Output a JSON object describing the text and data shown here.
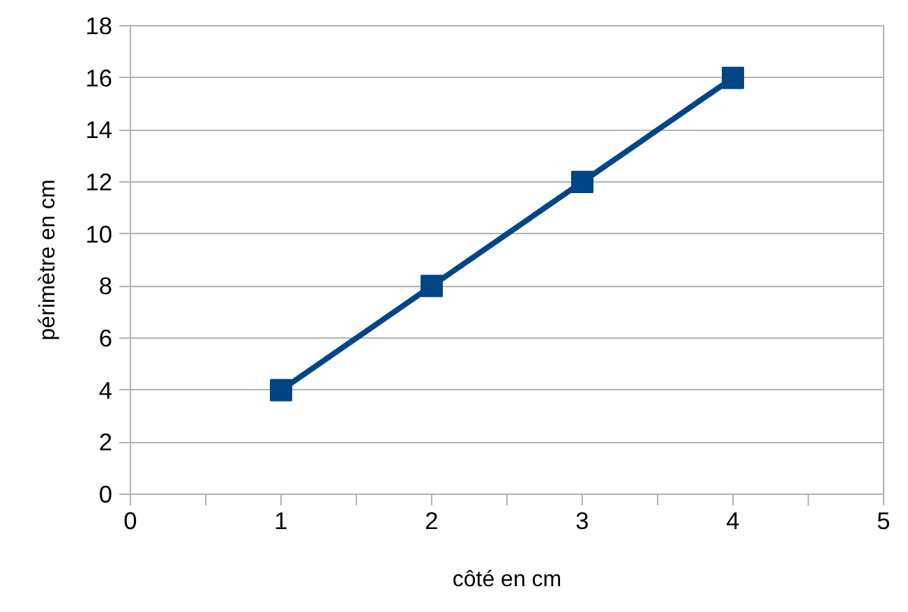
{
  "chart_data": {
    "type": "line",
    "xlabel": "côté en cm",
    "ylabel": "périmètre en cm",
    "x": [
      1,
      2,
      3,
      4
    ],
    "series": [
      {
        "color": "#004586",
        "values": [
          4,
          8,
          12,
          16
        ]
      }
    ],
    "xlim": [
      0,
      5
    ],
    "ylim": [
      0,
      18
    ],
    "xticks": [
      0,
      {
        "value": 0.5,
        "label": null
      },
      1,
      {
        "value": 1.5,
        "label": null
      },
      2,
      {
        "value": 2.5,
        "label": null
      },
      3,
      {
        "value": 3.5,
        "label": null
      },
      4,
      {
        "value": 4.5,
        "label": null
      },
      5
    ],
    "yticks": [
      0,
      2,
      4,
      6,
      8,
      10,
      12,
      14,
      16,
      18
    ],
    "grid": "y",
    "marker": "square",
    "line_style": "solid"
  }
}
